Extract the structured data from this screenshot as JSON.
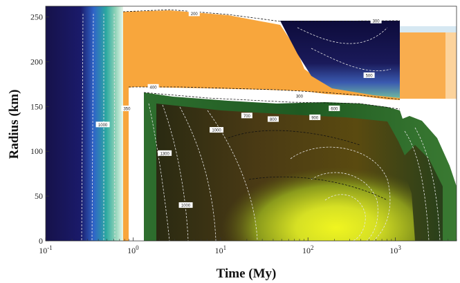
{
  "chart_data": {
    "type": "heatmap",
    "title": "",
    "xlabel": "Time (My)",
    "ylabel": "Radius (km)",
    "x_scale": "log",
    "xlim": [
      0.1,
      5000
    ],
    "ylim": [
      0,
      262
    ],
    "x_ticks": [
      {
        "value": 0.1,
        "base": "10",
        "exp": "-1"
      },
      {
        "value": 1,
        "base": "10",
        "exp": "0"
      },
      {
        "value": 10,
        "base": "10",
        "exp": "1"
      },
      {
        "value": 100,
        "base": "10",
        "exp": "2"
      },
      {
        "value": 1000,
        "base": "10",
        "exp": "3"
      }
    ],
    "y_ticks": [
      0,
      50,
      100,
      150,
      200,
      250
    ],
    "contour_labels": [
      {
        "text": "200",
        "x": 5,
        "y": 254
      },
      {
        "text": "300",
        "x": 600,
        "y": 246
      },
      {
        "text": "500",
        "x": 500,
        "y": 185
      },
      {
        "text": "400",
        "x": 1.7,
        "y": 172
      },
      {
        "text": "300",
        "x": 80,
        "y": 162
      },
      {
        "text": "350",
        "x": 0.85,
        "y": 148
      },
      {
        "text": "600",
        "x": 200,
        "y": 148
      },
      {
        "text": "700",
        "x": 20,
        "y": 140
      },
      {
        "text": "800",
        "x": 40,
        "y": 136
      },
      {
        "text": "900",
        "x": 120,
        "y": 138
      },
      {
        "text": "1000",
        "x": 0.45,
        "y": 130
      },
      {
        "text": "1000",
        "x": 9,
        "y": 124
      },
      {
        "text": "1300",
        "x": 2.3,
        "y": 98
      },
      {
        "text": "1000",
        "x": 4,
        "y": 40
      }
    ]
  }
}
